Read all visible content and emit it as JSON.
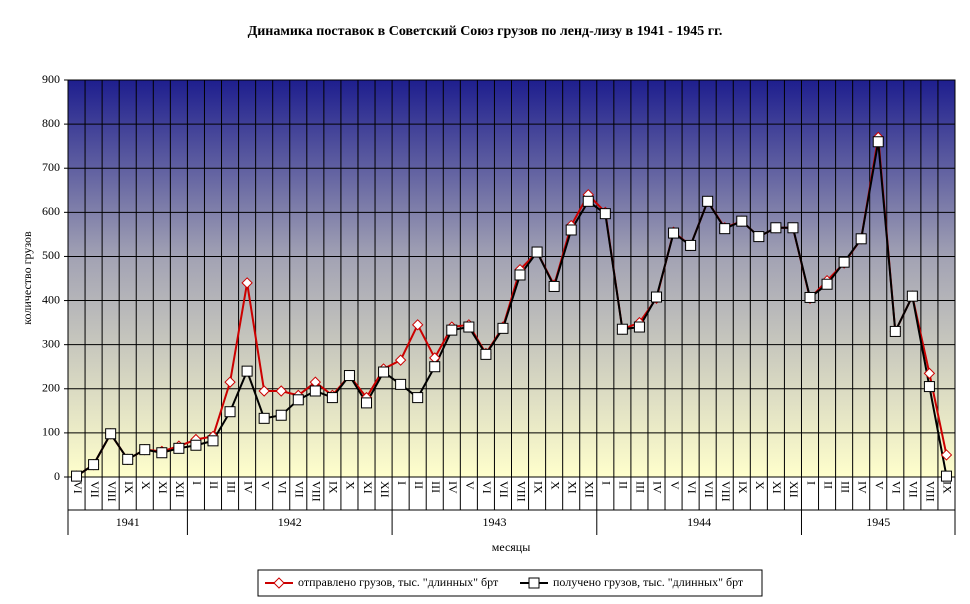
{
  "chart_data": {
    "type": "line",
    "title": "Динамика поставок в Советский Союз грузов по ленд-лизу в 1941 - 1945 гг.",
    "y_label": "количество грузов",
    "x_label": "месяцы",
    "categories": [
      "VI",
      "VII",
      "VIII",
      "IX",
      "X",
      "XI",
      "XII",
      "I",
      "II",
      "III",
      "IV",
      "V",
      "VI",
      "VII",
      "VIII",
      "IX",
      "X",
      "XI",
      "XII",
      "I",
      "II",
      "III",
      "IV",
      "V",
      "VI",
      "VII",
      "VIII",
      "IX",
      "X",
      "XI",
      "XII",
      "I",
      "II",
      "III",
      "IV",
      "V",
      "VI",
      "VII",
      "VIII",
      "IX",
      "X",
      "XI",
      "XII",
      "I",
      "II",
      "III",
      "IV",
      "V",
      "VI",
      "VII",
      "VIII",
      "IX"
    ],
    "years": [
      "1941",
      "1942",
      "1943",
      "1944",
      "1945"
    ],
    "series": [
      {
        "name": "отправлено грузов, тыс. \"длинных\" брт",
        "color": "#cc0000",
        "marker": "diamond",
        "values": [
          2,
          28,
          98,
          40,
          62,
          58,
          70,
          85,
          92,
          215,
          440,
          195,
          195,
          185,
          215,
          185,
          230,
          180,
          245,
          265,
          345,
          270,
          340,
          345,
          280,
          340,
          470,
          510,
          435,
          570,
          640,
          600,
          335,
          350,
          405,
          555,
          525,
          625,
          565,
          580,
          545,
          565,
          565,
          405,
          445,
          485,
          540,
          770,
          330,
          410,
          235,
          50
        ]
      },
      {
        "name": "получено грузов, тыс. \"длинных\" брт",
        "color": "#000000",
        "marker": "square",
        "values": [
          2,
          28,
          98,
          40,
          62,
          55,
          65,
          72,
          82,
          148,
          240,
          133,
          140,
          175,
          195,
          180,
          230,
          168,
          238,
          210,
          180,
          250,
          333,
          340,
          278,
          337,
          458,
          510,
          432,
          560,
          625,
          597,
          335,
          340,
          408,
          553,
          525,
          625,
          563,
          580,
          545,
          565,
          565,
          407,
          437,
          487,
          540,
          760,
          330,
          410,
          205,
          2
        ]
      }
    ],
    "ylim": [
      0,
      900
    ],
    "yticks": [
      0,
      100,
      200,
      300,
      400,
      500,
      600,
      700,
      800,
      900
    ],
    "grid": true
  }
}
